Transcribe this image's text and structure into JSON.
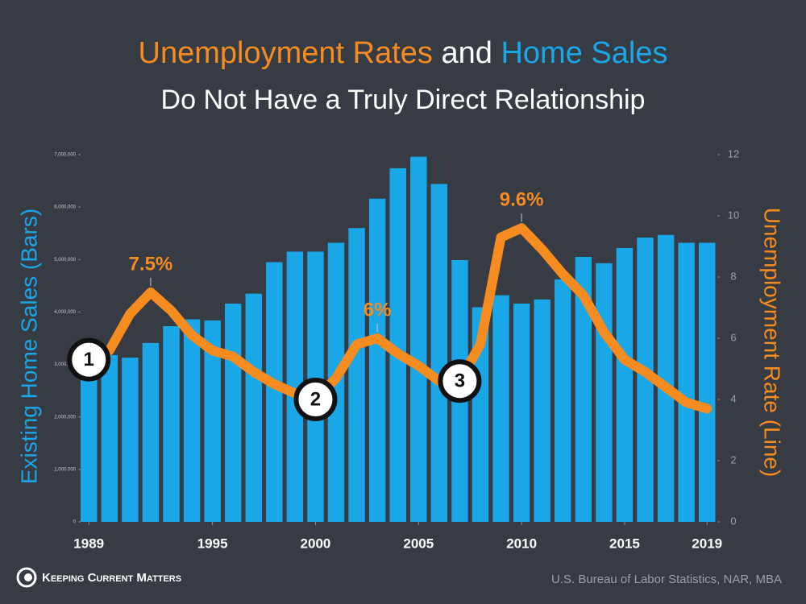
{
  "chart_data": {
    "type": "bar_line",
    "title": [
      "Unemployment Rates",
      "and",
      "Home Sales"
    ],
    "subtitle": "Do Not Have a Truly Direct Relationship",
    "y_label": "Existing Home Sales (Bars)",
    "y2_label": "Unemployment Rate (Line)",
    "x": [
      1989,
      1990,
      1991,
      1992,
      1993,
      1994,
      1995,
      1996,
      1997,
      1998,
      1999,
      2000,
      2001,
      2002,
      2003,
      2004,
      2005,
      2006,
      2007,
      2008,
      2009,
      2010,
      2011,
      2012,
      2013,
      2014,
      2015,
      2016,
      2017,
      2018,
      2019
    ],
    "series": [
      {
        "type": "bar",
        "color": "#1aa7e8",
        "values": [
          3300000,
          3180000,
          3130000,
          3410000,
          3730000,
          3860000,
          3840000,
          4160000,
          4350000,
          4950000,
          5150000,
          5150000,
          5320000,
          5600000,
          6160000,
          6740000,
          6960000,
          6440000,
          4990000,
          4090000,
          4320000,
          4160000,
          4240000,
          4620000,
          5050000,
          4930000,
          5220000,
          5420000,
          5470000,
          5320000,
          5320000
        ]
      },
      {
        "type": "line",
        "axis": "y2",
        "color": "#f68b1f",
        "values": [
          5.3,
          5.6,
          6.8,
          7.5,
          6.9,
          6.1,
          5.6,
          5.4,
          4.9,
          4.5,
          4.2,
          4.0,
          4.7,
          5.8,
          6.0,
          5.5,
          5.1,
          4.6,
          4.6,
          5.8,
          9.3,
          9.6,
          8.9,
          8.1,
          7.4,
          6.2,
          5.3,
          4.9,
          4.4,
          3.9,
          3.7
        ],
        "value_labels": [
          null,
          null,
          null,
          "7.5%",
          null,
          null,
          null,
          null,
          null,
          null,
          null,
          null,
          null,
          null,
          "6%",
          null,
          null,
          null,
          null,
          null,
          null,
          "9.6%",
          null,
          null,
          null,
          null,
          null,
          null,
          null,
          null,
          null
        ]
      }
    ],
    "markers": [
      {
        "x": 1989,
        "label": "1"
      },
      {
        "x": 2000,
        "label": "2"
      },
      {
        "x": 2007,
        "label": "3"
      }
    ],
    "xlim": [
      1988.6,
      2019.5
    ],
    "xticks": [
      1989,
      1995,
      2000,
      2005,
      2010,
      2015,
      2019
    ],
    "ylim": [
      0,
      7000000
    ],
    "yticks": [
      0,
      {
        "value": 1000000,
        "label": "1,000,000"
      },
      {
        "value": 2000000,
        "label": "2,000,000"
      },
      {
        "value": 3000000,
        "label": "3,000,000"
      },
      {
        "value": 4000000,
        "label": "4,000,000"
      },
      {
        "value": 5000000,
        "label": "5,000,000"
      },
      {
        "value": 6000000,
        "label": "6,000,000"
      },
      {
        "value": 7000000,
        "label": "7,000,000"
      }
    ],
    "y2lim": [
      0,
      12
    ],
    "y2ticks": [
      0,
      2,
      4,
      6,
      8,
      10,
      12
    ],
    "brand": "Keeping Current Matters",
    "source": "U.S. Bureau of Labor Statistics, NAR, MBA"
  }
}
